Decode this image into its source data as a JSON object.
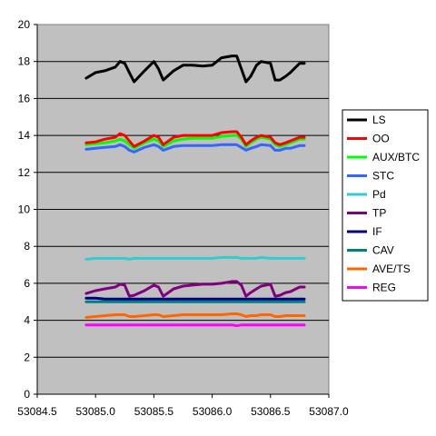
{
  "chart_data": {
    "type": "line",
    "title": "",
    "xlabel": "",
    "ylabel": "",
    "xlim": [
      53084.5,
      53087.0
    ],
    "ylim": [
      0,
      20
    ],
    "x_ticks": [
      "53084.5",
      "53085.0",
      "53085.5",
      "53086.0",
      "53086.5",
      "53087.0"
    ],
    "x_tick_values": [
      53084.5,
      53085.0,
      53085.5,
      53086.0,
      53086.5,
      53087.0
    ],
    "y_ticks": [
      "0",
      "2",
      "4",
      "6",
      "8",
      "10",
      "12",
      "14",
      "16",
      "18",
      "20"
    ],
    "y_tick_values": [
      0,
      2,
      4,
      6,
      8,
      10,
      12,
      14,
      16,
      18,
      20
    ],
    "grid": "horizontal",
    "plot_background": "#c0c0c0",
    "legend_position": "right",
    "x": [
      53084.92,
      53085.0,
      53085.08,
      53085.17,
      53085.21,
      53085.25,
      53085.29,
      53085.33,
      53085.42,
      53085.5,
      53085.54,
      53085.58,
      53085.67,
      53085.75,
      53085.83,
      53085.92,
      53086.0,
      53086.08,
      53086.17,
      53086.21,
      53086.25,
      53086.29,
      53086.33,
      53086.38,
      53086.42,
      53086.5,
      53086.54,
      53086.58,
      53086.63,
      53086.67,
      53086.75,
      53086.79
    ],
    "series": [
      {
        "name": "LS",
        "color": "#000000",
        "values": [
          17.1,
          17.4,
          17.5,
          17.7,
          18.0,
          17.9,
          17.4,
          16.9,
          17.5,
          18.0,
          17.6,
          17.0,
          17.5,
          17.8,
          17.8,
          17.75,
          17.8,
          18.2,
          18.3,
          18.3,
          17.6,
          16.9,
          17.2,
          17.8,
          18.0,
          17.9,
          17.0,
          17.0,
          17.2,
          17.4,
          17.9,
          17.9
        ]
      },
      {
        "name": "OO",
        "color": "#ff0000",
        "values": [
          13.6,
          13.65,
          13.8,
          13.9,
          14.1,
          14.0,
          13.7,
          13.4,
          13.7,
          14.0,
          13.9,
          13.5,
          13.9,
          14.0,
          14.0,
          14.0,
          14.0,
          14.15,
          14.2,
          14.2,
          13.9,
          13.5,
          13.7,
          13.9,
          14.0,
          13.9,
          13.6,
          13.5,
          13.6,
          13.7,
          13.9,
          13.9
        ]
      },
      {
        "name": "AUX/BTC",
        "color": "#00ff00",
        "values": [
          13.5,
          13.55,
          13.6,
          13.7,
          13.8,
          13.7,
          13.5,
          13.3,
          13.6,
          13.8,
          13.7,
          13.4,
          13.7,
          13.8,
          13.85,
          13.85,
          13.85,
          13.95,
          14.0,
          14.0,
          13.8,
          13.4,
          13.6,
          13.8,
          13.9,
          13.8,
          13.5,
          13.4,
          13.5,
          13.6,
          13.8,
          13.8
        ]
      },
      {
        "name": "STC",
        "color": "#3366ff",
        "values": [
          13.25,
          13.3,
          13.35,
          13.4,
          13.5,
          13.4,
          13.2,
          13.1,
          13.35,
          13.5,
          13.4,
          13.2,
          13.4,
          13.45,
          13.45,
          13.45,
          13.45,
          13.5,
          13.5,
          13.5,
          13.35,
          13.2,
          13.3,
          13.4,
          13.5,
          13.45,
          13.2,
          13.2,
          13.3,
          13.3,
          13.45,
          13.45
        ]
      },
      {
        "name": "Pd",
        "color": "#33cccc",
        "values": [
          7.3,
          7.35,
          7.35,
          7.35,
          7.35,
          7.35,
          7.3,
          7.35,
          7.35,
          7.35,
          7.35,
          7.35,
          7.35,
          7.35,
          7.35,
          7.35,
          7.35,
          7.4,
          7.4,
          7.4,
          7.35,
          7.35,
          7.35,
          7.35,
          7.4,
          7.35,
          7.35,
          7.35,
          7.35,
          7.35,
          7.35,
          7.35
        ]
      },
      {
        "name": "TP",
        "color": "#800080",
        "values": [
          5.45,
          5.6,
          5.7,
          5.8,
          5.95,
          5.9,
          5.3,
          5.35,
          5.6,
          5.9,
          5.8,
          5.3,
          5.7,
          5.85,
          5.9,
          5.95,
          5.95,
          6.0,
          6.1,
          6.1,
          5.9,
          5.3,
          5.5,
          5.7,
          5.85,
          5.95,
          5.3,
          5.35,
          5.5,
          5.55,
          5.8,
          5.8
        ]
      },
      {
        "name": "IF",
        "color": "#000080",
        "values": [
          5.2,
          5.2,
          5.15,
          5.15,
          5.15,
          5.15,
          5.15,
          5.15,
          5.15,
          5.15,
          5.15,
          5.15,
          5.15,
          5.15,
          5.15,
          5.15,
          5.15,
          5.15,
          5.15,
          5.15,
          5.15,
          5.15,
          5.15,
          5.15,
          5.15,
          5.15,
          5.15,
          5.15,
          5.15,
          5.15,
          5.15,
          5.15
        ]
      },
      {
        "name": "CAV",
        "color": "#008080",
        "values": [
          5.0,
          5.0,
          5.0,
          5.0,
          5.0,
          5.0,
          5.0,
          5.0,
          5.0,
          5.0,
          5.0,
          5.0,
          5.0,
          5.0,
          5.0,
          5.0,
          5.0,
          5.0,
          5.0,
          5.0,
          5.0,
          5.0,
          5.0,
          5.0,
          5.0,
          5.0,
          5.0,
          5.0,
          5.0,
          5.0,
          5.0,
          5.0
        ]
      },
      {
        "name": "AVE/TS",
        "color": "#ff6600",
        "values": [
          4.15,
          4.2,
          4.25,
          4.3,
          4.3,
          4.3,
          4.2,
          4.2,
          4.25,
          4.3,
          4.3,
          4.2,
          4.25,
          4.3,
          4.3,
          4.3,
          4.3,
          4.3,
          4.35,
          4.35,
          4.3,
          4.2,
          4.25,
          4.25,
          4.3,
          4.3,
          4.2,
          4.2,
          4.25,
          4.25,
          4.25,
          4.25
        ]
      },
      {
        "name": "REG",
        "color": "#ff00ff",
        "values": [
          3.75,
          3.75,
          3.75,
          3.75,
          3.75,
          3.75,
          3.75,
          3.75,
          3.75,
          3.75,
          3.75,
          3.75,
          3.75,
          3.75,
          3.75,
          3.75,
          3.75,
          3.75,
          3.75,
          3.7,
          3.75,
          3.75,
          3.75,
          3.75,
          3.75,
          3.75,
          3.75,
          3.75,
          3.75,
          3.75,
          3.75,
          3.75
        ]
      }
    ]
  }
}
